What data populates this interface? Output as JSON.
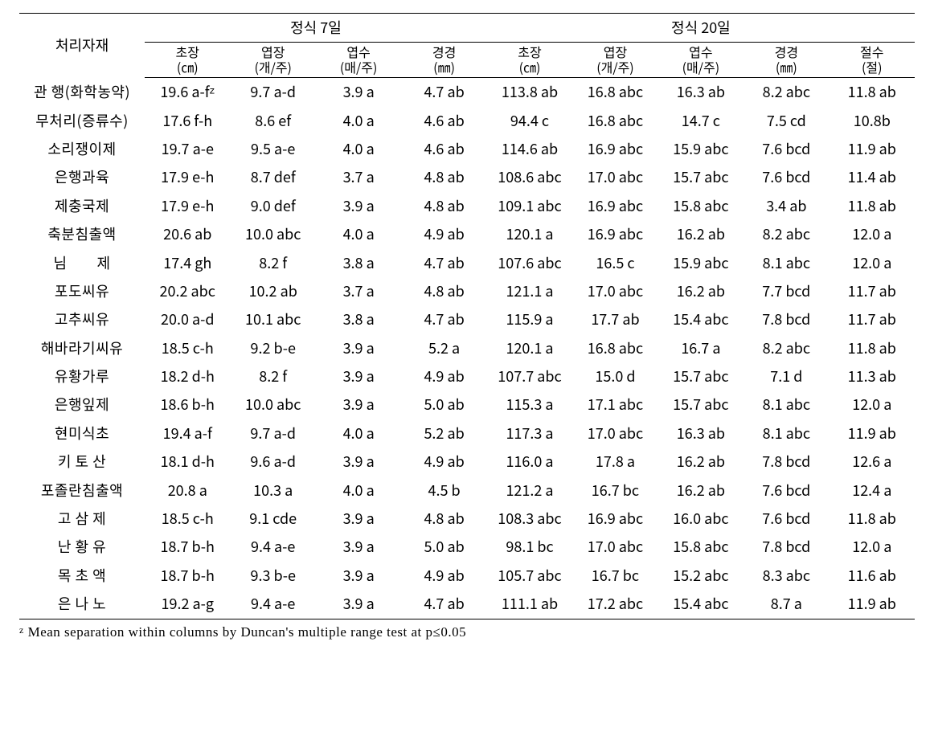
{
  "table": {
    "type": "table",
    "background_color": "#ffffff",
    "text_color": "#000000",
    "border_color": "#000000",
    "font_size_body": 18,
    "font_size_unit": 16,
    "row_header_label": "처리자재",
    "span_headers": [
      "정식 7일",
      "정식 20일"
    ],
    "span_sizes": [
      4,
      5
    ],
    "sub_headers": [
      {
        "label": "초장",
        "unit": "(㎝)"
      },
      {
        "label": "엽장",
        "unit": "(개/주)"
      },
      {
        "label": "엽수",
        "unit": "(매/주)"
      },
      {
        "label": "경경",
        "unit": "(㎜)"
      },
      {
        "label": "초장",
        "unit": "(㎝)"
      },
      {
        "label": "엽장",
        "unit": "(개/주)"
      },
      {
        "label": "엽수",
        "unit": "(매/주)"
      },
      {
        "label": "경경",
        "unit": "(㎜)"
      },
      {
        "label": "절수",
        "unit": "(절)"
      }
    ],
    "rows": [
      {
        "label": "관 행(화학농약)",
        "cells": [
          "19.6 a-fᶻ",
          "9.7 a-d",
          "3.9 a",
          "4.7 ab",
          "113.8 ab",
          "16.8 abc",
          "16.3 ab",
          "8.2 abc",
          "11.8 ab"
        ]
      },
      {
        "label": "무처리(증류수)",
        "cells": [
          "17.6 f-h",
          "8.6 ef",
          "4.0 a",
          "4.6 ab",
          "94.4 c",
          "16.8 abc",
          "14.7 c",
          "7.5 cd",
          "10.8b"
        ]
      },
      {
        "label": "소리쟁이제",
        "cells": [
          "19.7 a-e",
          "9.5 a-e",
          "4.0 a",
          "4.6 ab",
          "114.6 ab",
          "16.9 abc",
          "15.9 abc",
          "7.6 bcd",
          "11.9 ab"
        ]
      },
      {
        "label": "은행과육",
        "cells": [
          "17.9 e-h",
          "8.7 def",
          "3.7 a",
          "4.8 ab",
          "108.6 abc",
          "17.0 abc",
          "15.7 abc",
          "7.6 bcd",
          "11.4 ab"
        ]
      },
      {
        "label": "제충국제",
        "cells": [
          "17.9 e-h",
          "9.0 def",
          "3.9 a",
          "4.8 ab",
          "109.1 abc",
          "16.9 abc",
          "15.8 abc",
          "3.4 ab",
          "11.8 ab"
        ]
      },
      {
        "label": "축분침출액",
        "cells": [
          "20.6 ab",
          "10.0 abc",
          "4.0 a",
          "4.9 ab",
          "120.1 a",
          "16.9 abc",
          "16.2 ab",
          "8.2 abc",
          "12.0 a"
        ]
      },
      {
        "label": "님　　제",
        "cells": [
          "17.4 gh",
          "8.2 f",
          "3.8 a",
          "4.7 ab",
          "107.6 abc",
          "16.5 c",
          "15.9 abc",
          "8.1 abc",
          "12.0 a"
        ]
      },
      {
        "label": "포도씨유",
        "cells": [
          "20.2 abc",
          "10.2 ab",
          "3.7 a",
          "4.8 ab",
          "121.1 a",
          "17.0 abc",
          "16.2 ab",
          "7.7 bcd",
          "11.7 ab"
        ]
      },
      {
        "label": "고추씨유",
        "cells": [
          "20.0 a-d",
          "10.1 abc",
          "3.8 a",
          "4.7 ab",
          "115.9 a",
          "17.7 ab",
          "15.4 abc",
          "7.8 bcd",
          "11.7 ab"
        ]
      },
      {
        "label": "해바라기씨유",
        "cells": [
          "18.5 c-h",
          "9.2 b-e",
          "3.9 a",
          "5.2 a",
          "120.1 a",
          "16.8 abc",
          "16.7 a",
          "8.2 abc",
          "11.8 ab"
        ]
      },
      {
        "label": "유황가루",
        "cells": [
          "18.2 d-h",
          "8.2 f",
          "3.9 a",
          "4.9 ab",
          "107.7 abc",
          "15.0 d",
          "15.7 abc",
          "7.1 d",
          "11.3 ab"
        ]
      },
      {
        "label": "은행잎제",
        "cells": [
          "18.6 b-h",
          "10.0 abc",
          "3.9 a",
          "5.0 ab",
          "115.3 a",
          "17.1 abc",
          "15.7 abc",
          "8.1 abc",
          "12.0 a"
        ]
      },
      {
        "label": "현미식초",
        "cells": [
          "19.4 a-f",
          "9.7 a-d",
          "4.0 a",
          "5.2 ab",
          "117.3 a",
          "17.0 abc",
          "16.3 ab",
          "8.1 abc",
          "11.9 ab"
        ]
      },
      {
        "label": "키 토 산",
        "cells": [
          "18.1 d-h",
          "9.6 a-d",
          "3.9 a",
          "4.9 ab",
          "116.0 a",
          "17.8 a",
          "16.2 ab",
          "7.8 bcd",
          "12.6 a"
        ]
      },
      {
        "label": "포졸란침출액",
        "cells": [
          "20.8 a",
          "10.3 a",
          "4.0 a",
          "4.5 b",
          "121.2 a",
          "16.7 bc",
          "16.2 ab",
          "7.6 bcd",
          "12.4 a"
        ]
      },
      {
        "label": "고 삼 제",
        "cells": [
          "18.5 c-h",
          "9.1 cde",
          "3.9 a",
          "4.8 ab",
          "108.3 abc",
          "16.9 abc",
          "16.0 abc",
          "7.6 bcd",
          "11.8 ab"
        ]
      },
      {
        "label": "난 황 유",
        "cells": [
          "18.7 b-h",
          "9.4 a-e",
          "3.9 a",
          "5.0 ab",
          "98.1 bc",
          "17.0 abc",
          "15.8 abc",
          "7.8 bcd",
          "12.0 a"
        ]
      },
      {
        "label": "목 초 액",
        "cells": [
          "18.7 b-h",
          "9.3 b-e",
          "3.9 a",
          "4.9 ab",
          "105.7 abc",
          "16.7 bc",
          "15.2 abc",
          "8.3 abc",
          "11.6 ab"
        ]
      },
      {
        "label": "은 나 노",
        "cells": [
          "19.2 a-g",
          "9.4 a-e",
          "3.9 a",
          "4.7 ab",
          "111.1 ab",
          "17.2 abc",
          "15.4 abc",
          "8.7 a",
          "11.9 ab"
        ]
      }
    ],
    "footnote_marker": "z",
    "footnote_text": "Mean separation within columns by Duncan's multiple range test at p≤0.05"
  }
}
